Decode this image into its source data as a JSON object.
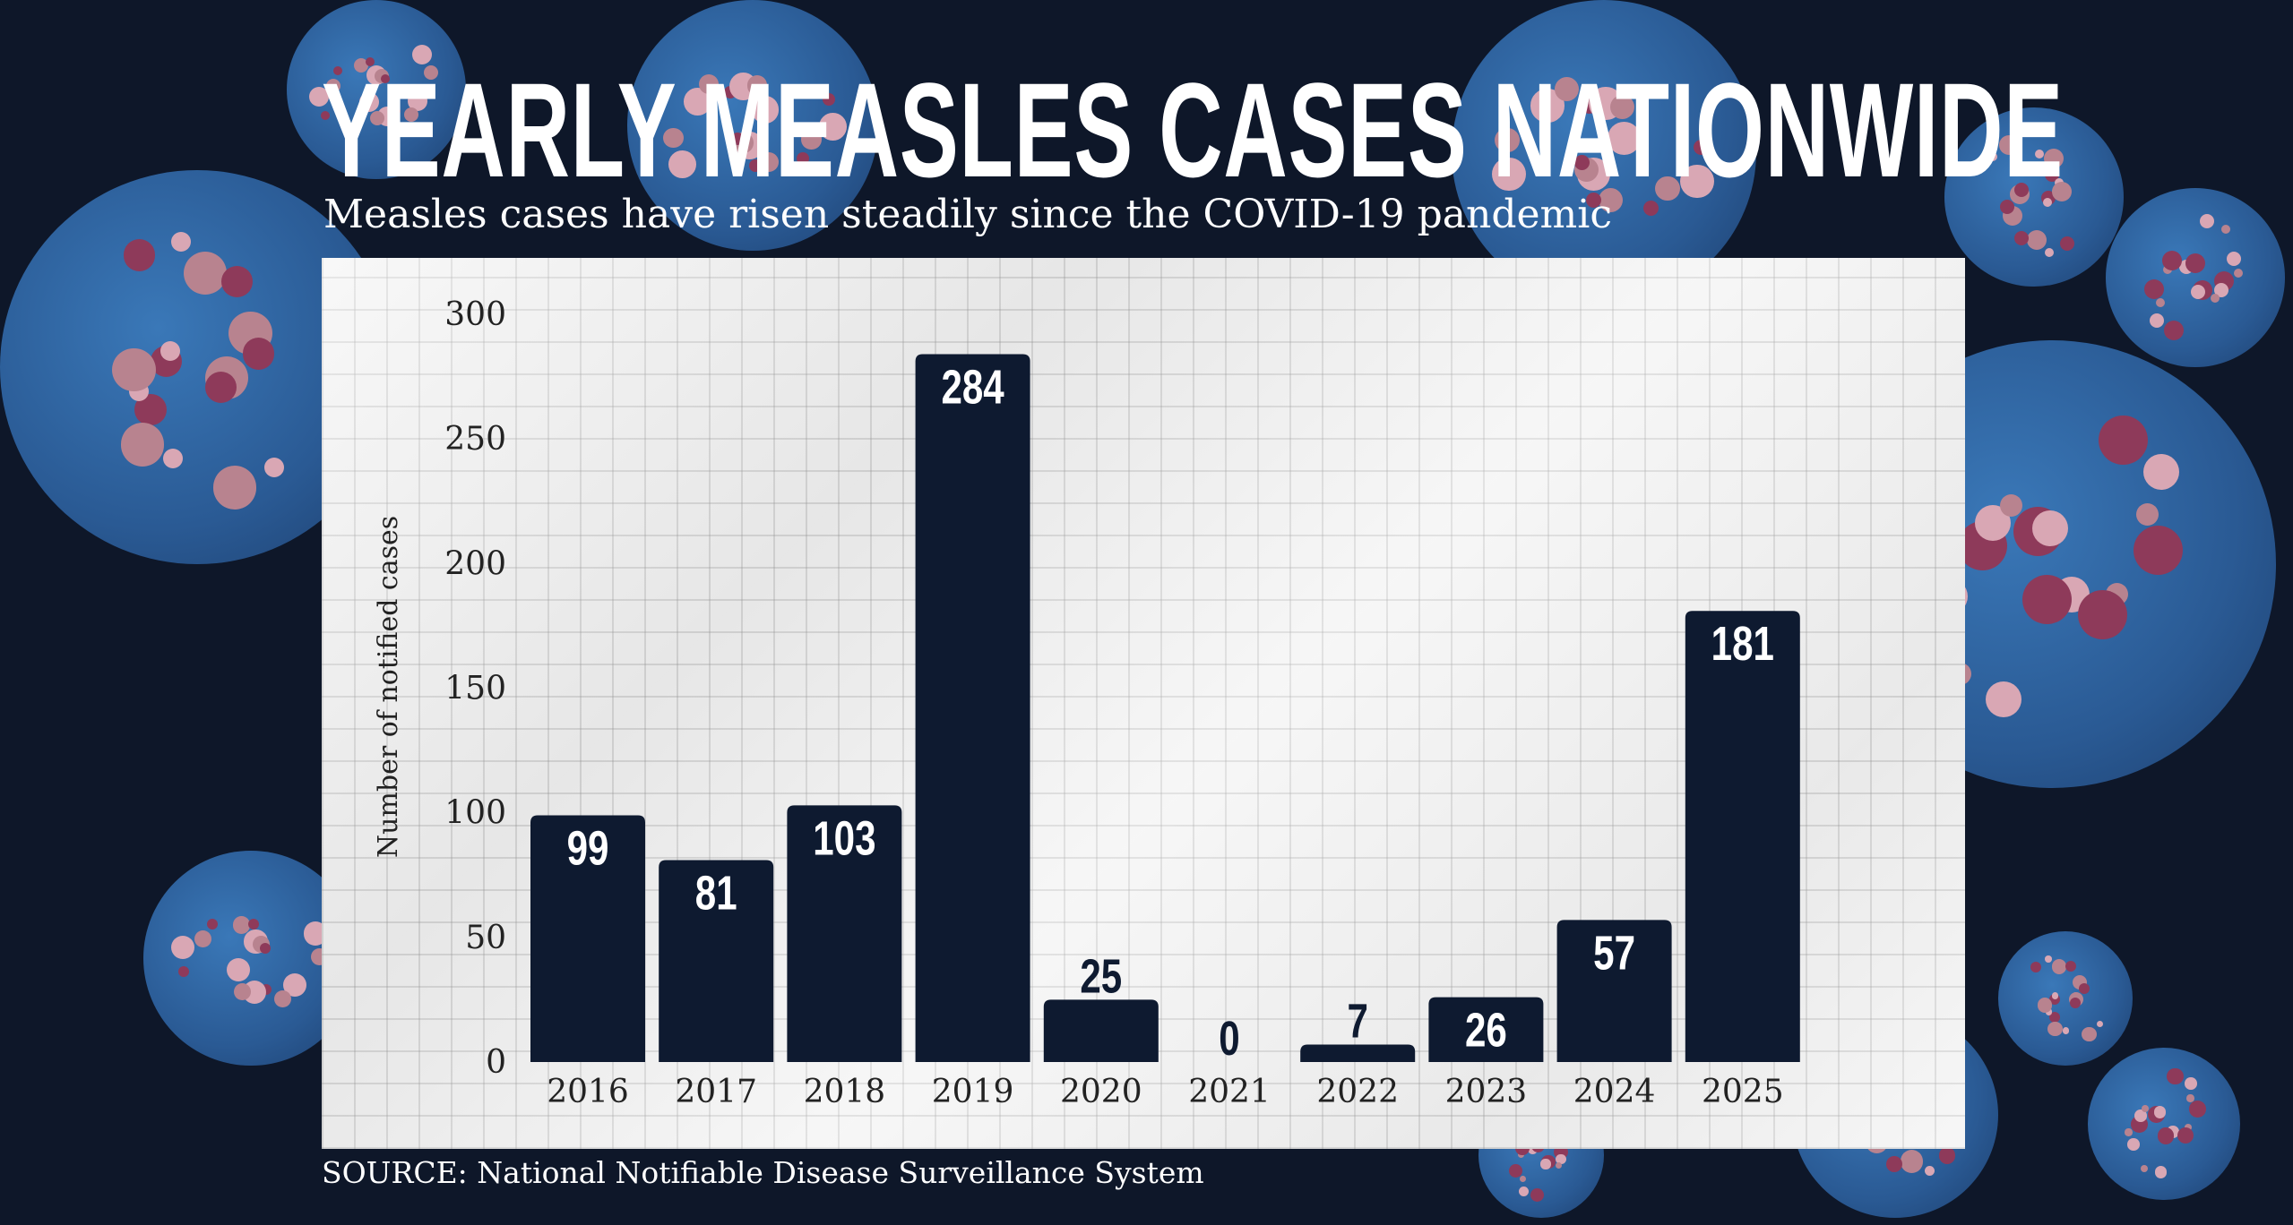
{
  "title": "YEARLY MEASLES CASES NATIONWIDE",
  "subtitle": "Measles cases have risen steadily since the COVID-19 pandemic",
  "source": "SOURCE: National Notifiable Disease Surveillance System",
  "colors": {
    "background": "#0e1729",
    "bar": "#0e1a30",
    "paper": "#f1f1f1",
    "virus_blue": "#2f67a6",
    "virus_pink": "#d9a7b4"
  },
  "chart_data": {
    "type": "bar",
    "title": "YEARLY MEASLES CASES NATIONWIDE",
    "subtitle": "Measles cases have risen steadily since the COVID-19 pandemic",
    "xlabel": "",
    "ylabel": "Number of notified cases",
    "categories": [
      "2016",
      "2017",
      "2018",
      "2019",
      "2020",
      "2021",
      "2022",
      "2023",
      "2024",
      "2025"
    ],
    "values": [
      99,
      81,
      103,
      284,
      25,
      0,
      7,
      26,
      57,
      181
    ],
    "ylim": [
      0,
      300
    ],
    "yticks": [
      "0",
      "50",
      "100",
      "150",
      "200",
      "250",
      "300"
    ],
    "grid": true,
    "data_labels": true
  }
}
